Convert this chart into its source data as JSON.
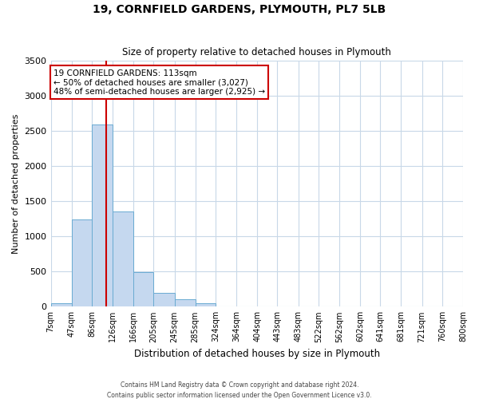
{
  "title": "19, CORNFIELD GARDENS, PLYMOUTH, PL7 5LB",
  "subtitle": "Size of property relative to detached houses in Plymouth",
  "xlabel": "Distribution of detached houses by size in Plymouth",
  "ylabel": "Number of detached properties",
  "bin_labels": [
    "7sqm",
    "47sqm",
    "86sqm",
    "126sqm",
    "166sqm",
    "205sqm",
    "245sqm",
    "285sqm",
    "324sqm",
    "364sqm",
    "404sqm",
    "443sqm",
    "483sqm",
    "522sqm",
    "562sqm",
    "602sqm",
    "641sqm",
    "681sqm",
    "721sqm",
    "760sqm",
    "800sqm"
  ],
  "bar_heights": [
    50,
    1240,
    2590,
    1350,
    495,
    195,
    105,
    45,
    0,
    0,
    0,
    0,
    0,
    0,
    0,
    0,
    0,
    0,
    0,
    0
  ],
  "bar_color": "#c5d8ef",
  "bar_edge_color": "#6aabd2",
  "vline_x": 113,
  "vline_color": "#cc0000",
  "annotation_title": "19 CORNFIELD GARDENS: 113sqm",
  "annotation_line1": "← 50% of detached houses are smaller (3,027)",
  "annotation_line2": "48% of semi-detached houses are larger (2,925) →",
  "annotation_box_color": "#ffffff",
  "annotation_box_edge": "#cc0000",
  "ylim": [
    0,
    3500
  ],
  "background_color": "#ffffff",
  "grid_color": "#c8d8e8",
  "footer_line1": "Contains HM Land Registry data © Crown copyright and database right 2024.",
  "footer_line2": "Contains public sector information licensed under the Open Government Licence v3.0.",
  "bin_edges": [
    7,
    47,
    86,
    126,
    166,
    205,
    245,
    285,
    324,
    364,
    404,
    443,
    483,
    522,
    562,
    602,
    641,
    681,
    721,
    760,
    800
  ]
}
